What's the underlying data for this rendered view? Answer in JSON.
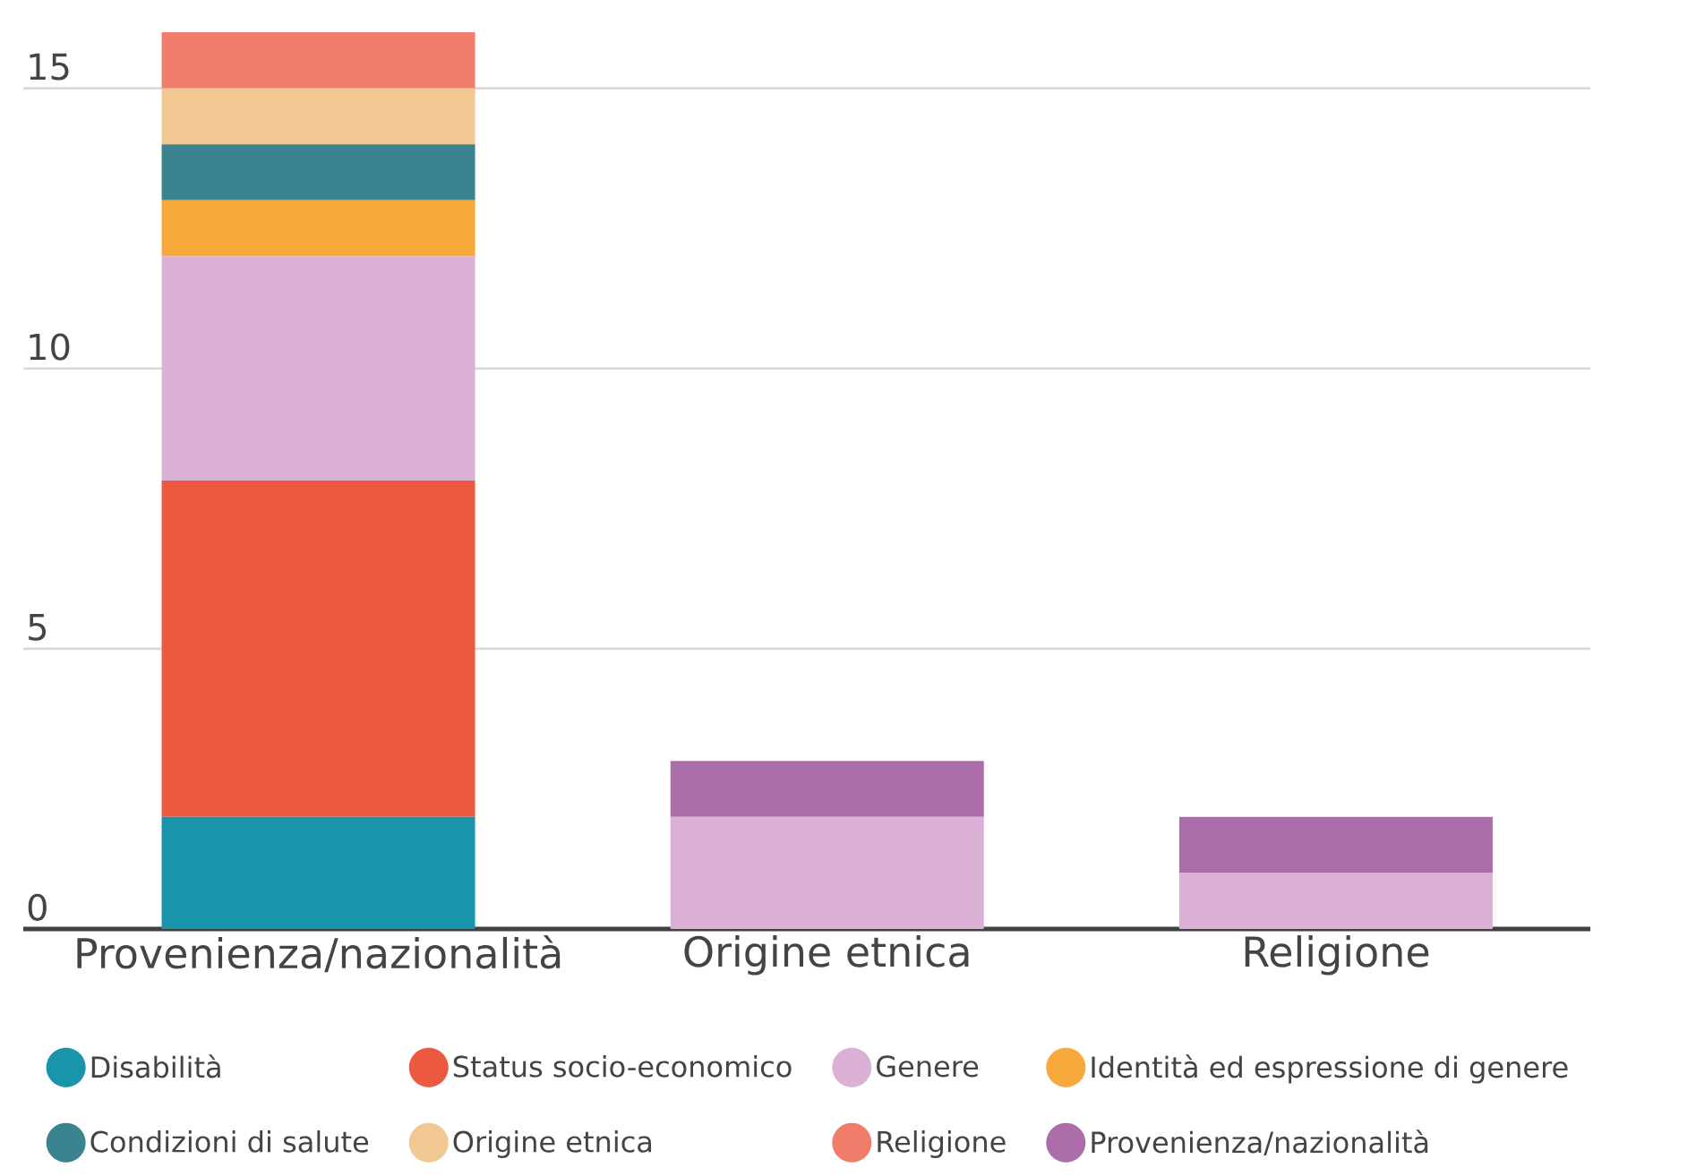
{
  "chart_data": {
    "type": "bar",
    "stacked": true,
    "categories": [
      "Provenienza/nazionalità",
      "Origine etnica",
      "Religione"
    ],
    "series": [
      {
        "name": "Disabilità",
        "color": "#1895aa",
        "values": [
          2,
          0,
          0
        ]
      },
      {
        "name": "Status socio-economico",
        "color": "#ea5940",
        "values": [
          6,
          0,
          0
        ]
      },
      {
        "name": "Genere",
        "color": "#dbb0d5",
        "values": [
          4,
          2,
          1
        ]
      },
      {
        "name": "Identità ed espressione di genere",
        "color": "#f7a93c",
        "values": [
          1,
          0,
          0
        ]
      },
      {
        "name": "Condizioni di salute",
        "color": "#3b848f",
        "values": [
          1,
          0,
          0
        ]
      },
      {
        "name": "Origine etnica",
        "color": "#f1c892",
        "values": [
          1,
          0,
          0
        ]
      },
      {
        "name": "Religione",
        "color": "#f07d6b",
        "values": [
          1,
          0,
          0
        ]
      },
      {
        "name": "Provenienza/nazionalità",
        "color": "#ab6eab",
        "values": [
          0,
          1,
          1
        ]
      }
    ],
    "ylim": [
      0,
      16
    ],
    "yticks": [
      0,
      5,
      10,
      15
    ],
    "grid": "y",
    "legend": "bottom"
  }
}
